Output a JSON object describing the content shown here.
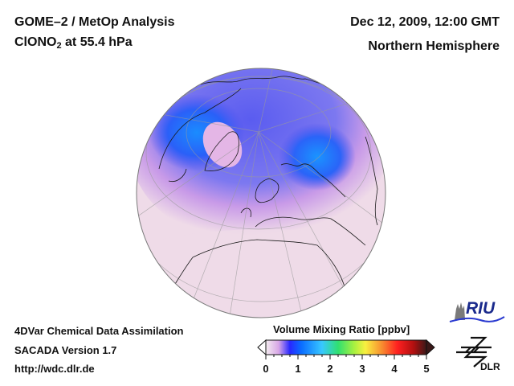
{
  "header": {
    "title_line1": "GOME–2 / MetOp Analysis",
    "species_main": "ClONO",
    "species_sub": "2",
    "species_rest": " at 55.4 hPa",
    "datetime": "Dec 12, 2009, 12:00 GMT",
    "region": "Northern Hemisphere"
  },
  "footer": {
    "line1": "4DVar Chemical Data Assimilation",
    "line2": "SACADA Version 1.7",
    "line3": "http://wdc.dlr.de"
  },
  "colorbar": {
    "label": "Volume Mixing Ratio [ppbv]",
    "ticks": [
      "0",
      "1",
      "2",
      "3",
      "4",
      "5"
    ],
    "range": [
      0,
      5
    ],
    "colors": [
      "#f2e6ee",
      "#d9a8e8",
      "#3a3aff",
      "#0060ff",
      "#38d8ff",
      "#30e060",
      "#b0f040",
      "#f8f040",
      "#f8a030",
      "#ff2020",
      "#c01010",
      "#402020"
    ]
  },
  "map": {
    "projection": "orthographic",
    "ocean_background": "#f0dde8",
    "field_colors": {
      "low": "#efd9e6",
      "mid": "#d596e8",
      "high": "#4a50f0",
      "peak": "#1880f8"
    }
  },
  "logos": {
    "riu": "RIU",
    "dlr": "DLR"
  }
}
